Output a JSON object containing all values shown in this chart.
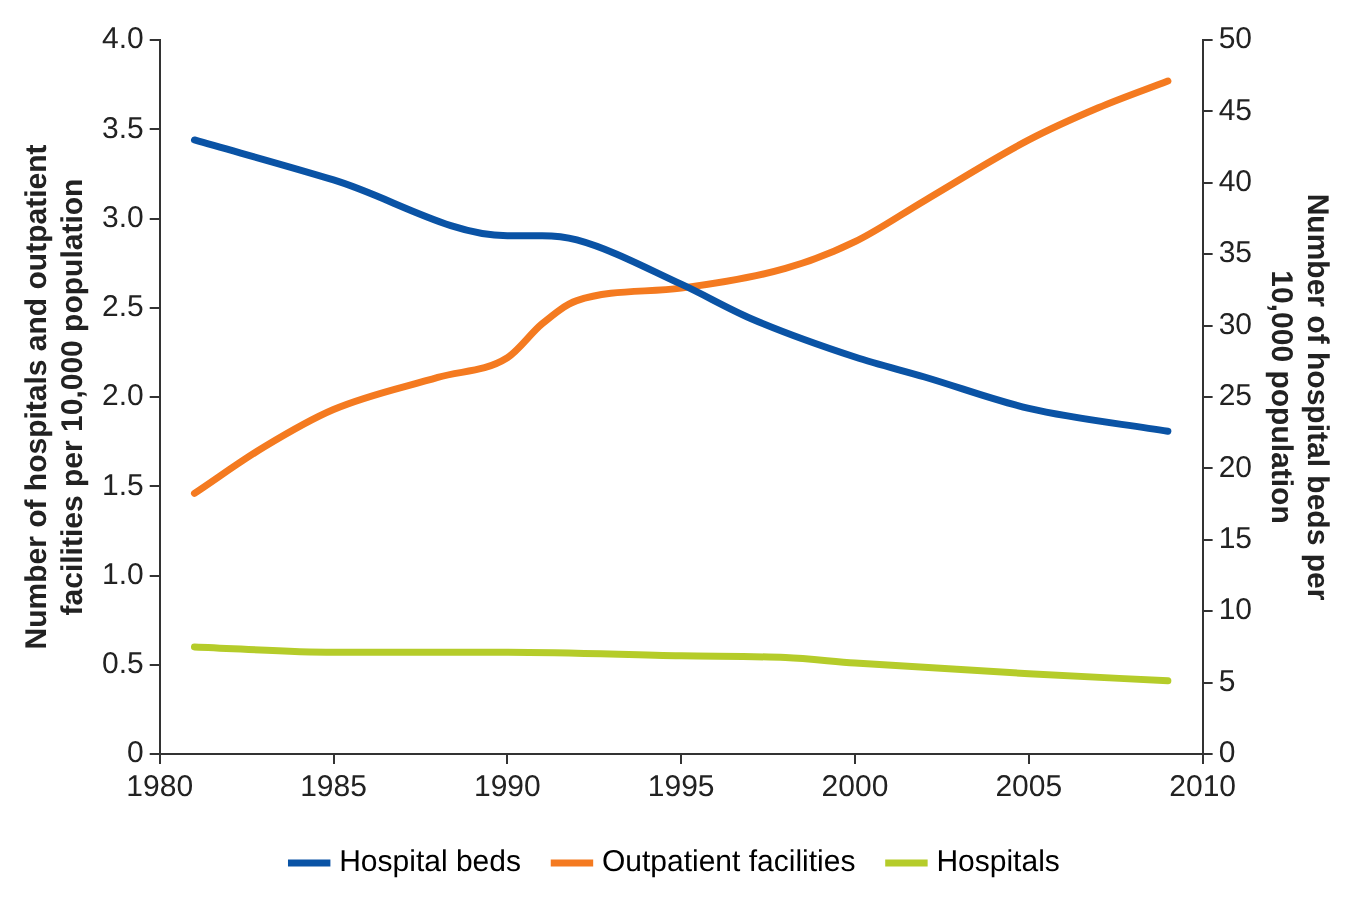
{
  "chart_data": {
    "type": "line",
    "xlabel": null,
    "ylabel": "Number of hospitals and outpatient facilities per 10,000 population",
    "y2label": "Number of hospital beds per 10,000 population",
    "xlim": [
      1980,
      2010
    ],
    "xticks": [
      1980,
      1985,
      1990,
      1995,
      2000,
      2005,
      2010
    ],
    "ylim": [
      0,
      4.0
    ],
    "yticks": [
      {
        "value": 0,
        "label": "0"
      },
      {
        "value": 0.5,
        "label": "0.5"
      },
      {
        "value": 1,
        "label": "1.0"
      },
      {
        "value": 1.5,
        "label": "1.5"
      },
      {
        "value": 2,
        "label": "2.0"
      },
      {
        "value": 2.5,
        "label": "2.5"
      },
      {
        "value": 3,
        "label": "3.0"
      },
      {
        "value": 3.5,
        "label": "3.5"
      },
      {
        "value": 4,
        "label": "4.0"
      }
    ],
    "y2lim": [
      0,
      50
    ],
    "y2ticks": [
      0,
      5,
      10,
      15,
      20,
      25,
      30,
      35,
      40,
      45,
      50
    ],
    "grid": false,
    "legend": "bottom",
    "marker": "none",
    "line_style": "solid",
    "series": [
      {
        "name": "Hospital beds",
        "color": "#0a53a5",
        "axis": "y2",
        "x": [
          1981,
          1985,
          1990,
          1991,
          1992,
          1995,
          1997,
          2000,
          2002,
          2005,
          2009
        ],
        "values": [
          43.0,
          40.2,
          36.3,
          36.3,
          36.0,
          32.9,
          30.5,
          27.8,
          26.4,
          24.2,
          22.6
        ]
      },
      {
        "name": "Outpatient facilities",
        "color": "#f47a20",
        "x": [
          1981,
          1983,
          1985,
          1988,
          1990,
          1991,
          1992,
          1995,
          1998,
          2000,
          2002,
          2005,
          2007,
          2009
        ],
        "values": [
          1.46,
          1.72,
          1.93,
          2.11,
          2.22,
          2.41,
          2.54,
          2.61,
          2.72,
          2.87,
          3.1,
          3.44,
          3.62,
          3.77
        ]
      },
      {
        "name": "Hospitals",
        "color": "#b5cc2a",
        "x": [
          1981,
          1985,
          1990,
          1995,
          1998,
          2000,
          2005,
          2009
        ],
        "values": [
          0.6,
          0.57,
          0.57,
          0.55,
          0.54,
          0.51,
          0.45,
          0.41
        ]
      }
    ]
  }
}
